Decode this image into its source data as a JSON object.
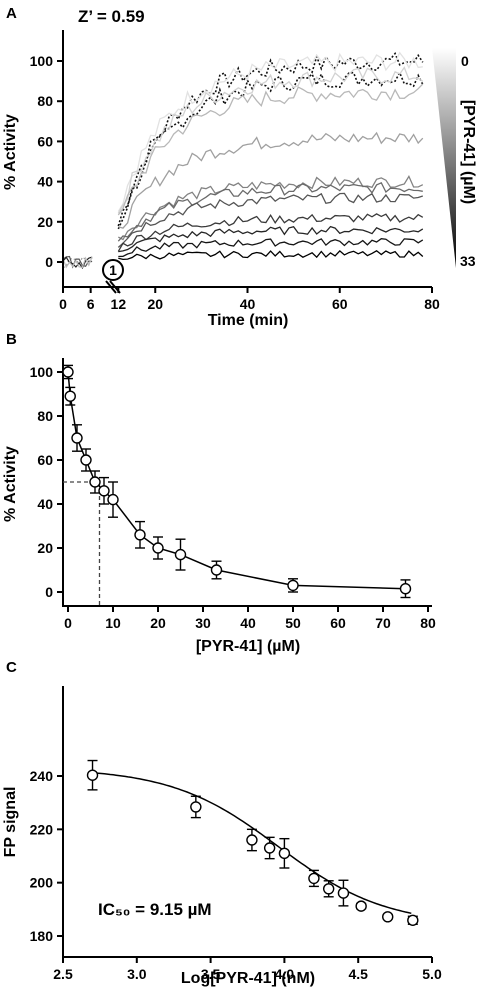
{
  "chart_data": [
    {
      "panel": "A",
      "type": "line",
      "annotation": "Z’ = 0.59",
      "event_marker": "1",
      "xlabel": "Time (min)",
      "ylabel": "% Activity",
      "xticks": [
        "0",
        "6",
        "12",
        "20",
        "40",
        "60",
        "80"
      ],
      "yticks": [
        "0",
        "20",
        "40",
        "60",
        "80",
        "100"
      ],
      "xlim": [
        0,
        80
      ],
      "ylim": [
        -5,
        115
      ],
      "gradient_legend": {
        "label": "[PYR-41] (µM)",
        "top": "0",
        "bottom": "33"
      },
      "series": [
        {
          "start": 18,
          "plateau": 100,
          "color": "#111111",
          "dotted": true
        },
        {
          "start": 17,
          "plateau": 92,
          "color": "#111111",
          "dotted": true
        },
        {
          "start": 26,
          "plateau": 100,
          "color": "#e2e2e2",
          "dotted": false
        },
        {
          "start": 24,
          "plateau": 93,
          "color": "#d2d2d2",
          "dotted": false
        },
        {
          "start": 20,
          "plateau": 85,
          "color": "#b8b8b8",
          "dotted": false
        },
        {
          "start": 15,
          "plateau": 62,
          "color": "#a0a0a0",
          "dotted": false
        },
        {
          "start": 11,
          "plateau": 40,
          "color": "#828282",
          "dotted": false
        },
        {
          "start": 10,
          "plateau": 37,
          "color": "#6a6a6a",
          "dotted": false
        },
        {
          "start": 9,
          "plateau": 32,
          "color": "#555555",
          "dotted": false
        },
        {
          "start": 7,
          "plateau": 22,
          "color": "#3a3a3a",
          "dotted": false
        },
        {
          "start": 6,
          "plateau": 16,
          "color": "#262626",
          "dotted": false
        },
        {
          "start": 4,
          "plateau": 10,
          "color": "#151515",
          "dotted": false
        },
        {
          "start": 2,
          "plateau": 4,
          "color": "#000000",
          "dotted": false
        }
      ]
    },
    {
      "panel": "B",
      "type": "scatter",
      "xlabel": "[PYR-41] (µM)",
      "ylabel": "% Activity",
      "xticks": [
        "0",
        "10",
        "20",
        "30",
        "40",
        "50",
        "60",
        "70",
        "80"
      ],
      "yticks": [
        "0",
        "20",
        "40",
        "60",
        "80",
        "100"
      ],
      "xlim": [
        0,
        80
      ],
      "ylim": [
        -5,
        105
      ],
      "points": [
        {
          "x": 0,
          "y": 100,
          "err": 3
        },
        {
          "x": 0.5,
          "y": 89,
          "err": 4
        },
        {
          "x": 2,
          "y": 70,
          "err": 6
        },
        {
          "x": 4,
          "y": 60,
          "err": 5
        },
        {
          "x": 6,
          "y": 50,
          "err": 5
        },
        {
          "x": 8,
          "y": 46,
          "err": 6
        },
        {
          "x": 10,
          "y": 42,
          "err": 8
        },
        {
          "x": 16,
          "y": 26,
          "err": 6
        },
        {
          "x": 20,
          "y": 20,
          "err": 5
        },
        {
          "x": 25,
          "y": 17,
          "err": 7
        },
        {
          "x": 33,
          "y": 10,
          "err": 4
        },
        {
          "x": 50,
          "y": 3,
          "err": 3
        },
        {
          "x": 75,
          "y": 1.5,
          "err": 4
        }
      ],
      "reference": {
        "x": 7,
        "y": 50
      }
    },
    {
      "panel": "C",
      "type": "scatter",
      "xlabel": "Log[PYR-41] (nM)",
      "ylabel": "FP signal",
      "xticks": [
        "2.5",
        "3.0",
        "3.5",
        "4.0",
        "4.5",
        "5.0"
      ],
      "yticks": [
        "180",
        "200",
        "220",
        "240"
      ],
      "xlim": [
        2.5,
        5.0
      ],
      "ylim": [
        180,
        248
      ],
      "annotation": "IC₅₀ = 9.15 µM",
      "points": [
        {
          "x": 2.7,
          "y": 240.3,
          "err": 5.5
        },
        {
          "x": 3.4,
          "y": 228.4,
          "err": 4
        },
        {
          "x": 3.78,
          "y": 216,
          "err": 4
        },
        {
          "x": 3.9,
          "y": 213,
          "err": 4
        },
        {
          "x": 4.0,
          "y": 211,
          "err": 5.5
        },
        {
          "x": 4.2,
          "y": 201.6,
          "err": 3
        },
        {
          "x": 4.3,
          "y": 197.7,
          "err": 3
        },
        {
          "x": 4.4,
          "y": 196.1,
          "err": 4.8
        },
        {
          "x": 4.52,
          "y": 191.2,
          "err": 1
        },
        {
          "x": 4.7,
          "y": 187.2,
          "err": 0.8
        },
        {
          "x": 4.87,
          "y": 185.9,
          "err": 1.5
        }
      ],
      "fit": {
        "top": 243,
        "bottom": 184,
        "logIC50": 3.96,
        "hill": 1.2
      }
    }
  ]
}
